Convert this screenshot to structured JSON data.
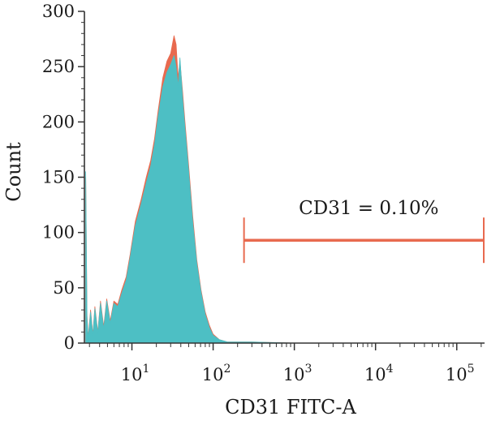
{
  "chart_data": {
    "type": "area",
    "xlabel": "CD31 FITC-A",
    "ylabel": "Count",
    "x_scale": "log",
    "xlim": [
      2.6,
      220000
    ],
    "ylim": [
      0,
      300
    ],
    "y_ticks": [
      0,
      50,
      100,
      150,
      200,
      250,
      300
    ],
    "x_ticks": [
      {
        "base": "10",
        "exp": "1",
        "value": 10
      },
      {
        "base": "10",
        "exp": "2",
        "value": 100
      },
      {
        "base": "10",
        "exp": "3",
        "value": 1000
      },
      {
        "base": "10",
        "exp": "4",
        "value": 10000
      },
      {
        "base": "10",
        "exp": "5",
        "value": 100000
      }
    ],
    "series": [
      {
        "color": "#e86a4f",
        "x": [
          2.7,
          2.8,
          2.9,
          3.1,
          3.3,
          3.5,
          3.8,
          4.1,
          4.5,
          4.9,
          5.4,
          6.0,
          6.7,
          7.5,
          8.5,
          9.5,
          11,
          13,
          15,
          17,
          19,
          21,
          24,
          27,
          30,
          33,
          35,
          37,
          39,
          42,
          45,
          50,
          56,
          63,
          71,
          80,
          90,
          100,
          120,
          150,
          200,
          300,
          1000,
          10000,
          100000,
          200000
        ],
        "y": [
          150,
          25,
          5,
          30,
          8,
          33,
          10,
          38,
          15,
          40,
          20,
          38,
          35,
          48,
          60,
          80,
          110,
          130,
          150,
          165,
          185,
          210,
          240,
          255,
          262,
          278,
          270,
          240,
          255,
          228,
          200,
          160,
          115,
          75,
          48,
          28,
          16,
          8,
          3,
          1,
          1,
          1,
          0,
          0,
          0,
          0
        ]
      },
      {
        "color": "#4dbfc4",
        "x": [
          2.7,
          2.8,
          2.9,
          3.1,
          3.3,
          3.5,
          3.8,
          4.1,
          4.5,
          4.9,
          5.4,
          6.0,
          6.7,
          7.5,
          8.5,
          9.5,
          11,
          13,
          15,
          17,
          19,
          21,
          24,
          27,
          30,
          33,
          35,
          37,
          39,
          42,
          45,
          50,
          56,
          63,
          71,
          80,
          90,
          100,
          120,
          150,
          200,
          300,
          1000,
          10000,
          100000,
          200000
        ],
        "y": [
          155,
          22,
          4,
          28,
          7,
          31,
          9,
          36,
          13,
          38,
          18,
          36,
          33,
          45,
          57,
          77,
          106,
          126,
          145,
          160,
          180,
          205,
          232,
          245,
          252,
          260,
          250,
          232,
          258,
          222,
          195,
          155,
          110,
          72,
          46,
          26,
          14,
          7,
          3,
          1,
          1,
          1,
          0,
          0,
          0,
          0
        ]
      }
    ],
    "gate": {
      "label": "CD31 = 0.10%",
      "x_start": 240,
      "x_end": 215000,
      "y": 93,
      "color": "#e86a4f"
    }
  }
}
